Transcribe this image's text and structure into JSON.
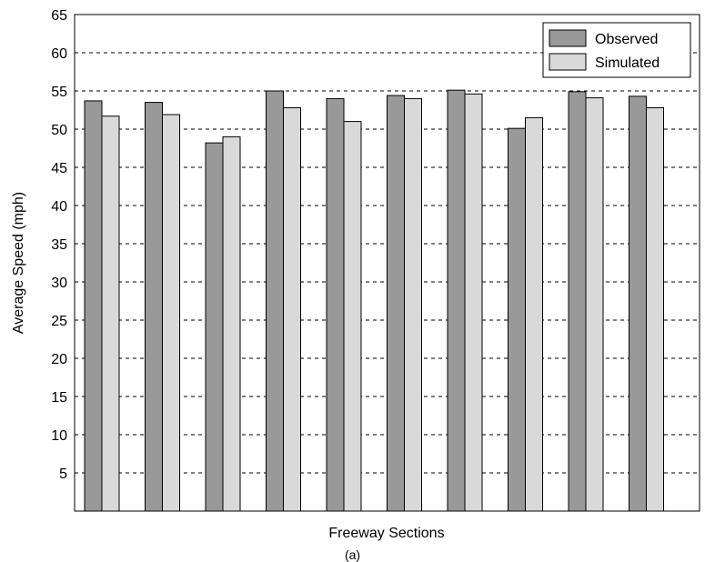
{
  "chart_data": {
    "type": "bar",
    "title": "",
    "xlabel": "Freeway Sections",
    "ylabel": "Average Speed (mph)",
    "ylim": [
      0,
      65
    ],
    "yticks": [
      5,
      10,
      15,
      20,
      25,
      30,
      35,
      40,
      45,
      50,
      55,
      60,
      65
    ],
    "grid": true,
    "legend_position": "top-right",
    "categories": [
      "",
      "",
      "",
      "",
      "",
      "",
      "",
      "",
      "",
      ""
    ],
    "series": [
      {
        "name": "Observed",
        "color": "#999999",
        "values": [
          53.7,
          53.5,
          48.2,
          55.0,
          54.0,
          54.4,
          55.1,
          50.1,
          54.9,
          54.3
        ]
      },
      {
        "name": "Simulated",
        "color": "#d9d9d9",
        "values": [
          51.7,
          51.9,
          49.0,
          52.8,
          51.0,
          54.0,
          54.6,
          51.5,
          54.1,
          52.8
        ]
      }
    ]
  },
  "caption": "(a)"
}
